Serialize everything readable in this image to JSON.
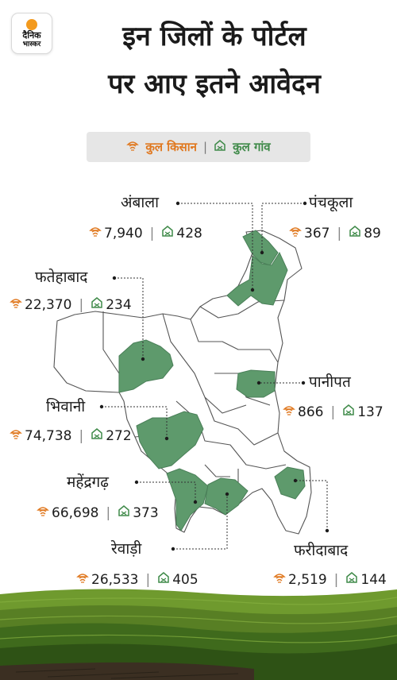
{
  "logo": {
    "line1": "दैनिक",
    "line2": "भास्कर"
  },
  "title": {
    "line1": "इन जिलों के पोर्टल",
    "line2": "पर आए इतने आवेदन"
  },
  "legend": {
    "farmers": "कुल किसान",
    "separator": "|",
    "villages": "कुल गांव"
  },
  "colors": {
    "district_fill": "#5e9a6c",
    "farmer_icon": "#e0781f",
    "village_icon": "#3f8a49",
    "legend_bg": "#e6e6e6"
  },
  "icons": {
    "farmer": "farmer-icon",
    "village": "village-icon"
  },
  "districts": [
    {
      "name": "अंबाला",
      "farmers": "7,940",
      "villages": "428"
    },
    {
      "name": "पंचकूला",
      "farmers": "367",
      "villages": "89"
    },
    {
      "name": "फतेहाबाद",
      "farmers": "22,370",
      "villages": "234"
    },
    {
      "name": "पानीपत",
      "farmers": "866",
      "villages": "137"
    },
    {
      "name": "भिवानी",
      "farmers": "74,738",
      "villages": "272"
    },
    {
      "name": "महेंद्रगढ़",
      "farmers": "66,698",
      "villages": "373"
    },
    {
      "name": "रेवाड़ी",
      "farmers": "26,533",
      "villages": "405"
    },
    {
      "name": "फरीदाबाद",
      "farmers": "2,519",
      "villages": "144"
    }
  ]
}
